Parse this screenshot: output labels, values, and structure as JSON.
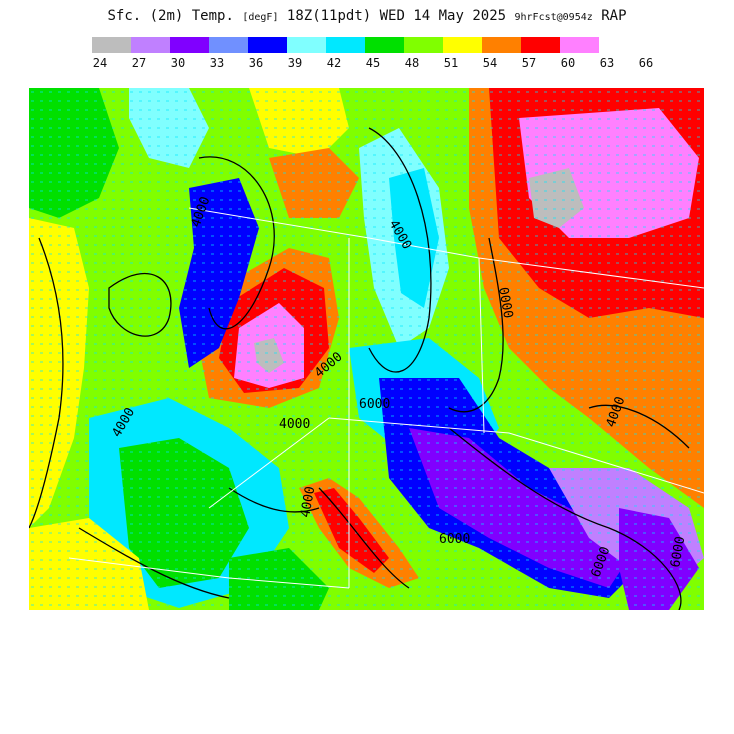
{
  "header": {
    "product": "Sfc. (2m) Temp.",
    "units": "[degF]",
    "valid": "18Z(11pdt) WED 14 May 2025",
    "forecast": "9hrFcst@0954z",
    "model": "RAP"
  },
  "legend": {
    "colors": [
      "#bdbdbd",
      "#c080ff",
      "#8000ff",
      "#7090ff",
      "#0000ff",
      "#80ffff",
      "#00e8ff",
      "#00e000",
      "#80ff00",
      "#ffff00",
      "#ff8000",
      "#ff0000",
      "#ff80ff"
    ],
    "ticks": [
      "24",
      "27",
      "30",
      "33",
      "36",
      "39",
      "42",
      "45",
      "48",
      "51",
      "54",
      "57",
      "60",
      "63",
      "66"
    ]
  },
  "map": {
    "contour_labels": [
      "4000",
      "4000",
      "4000",
      "4000",
      "4000",
      "4000",
      "4000",
      "6000",
      "6000",
      "6000",
      "6000",
      "0000"
    ]
  }
}
